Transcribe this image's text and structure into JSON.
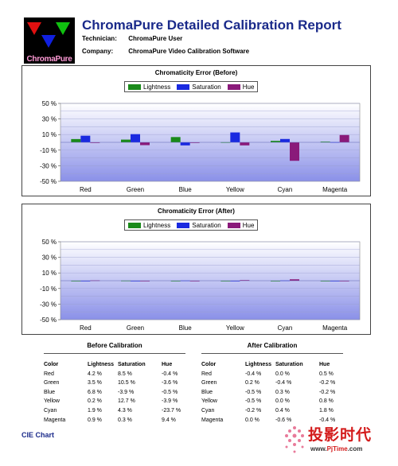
{
  "header": {
    "logo_text": "ChromaPure",
    "title": "ChromaPure Detailed Calibration Report",
    "technician_label": "Technician:",
    "technician_value": "ChromaPure User",
    "company_label": "Company:",
    "company_value": "ChromaPure Video Calibration Software"
  },
  "colors": {
    "lightness": "#1a8a1a",
    "saturation": "#1a2ae0",
    "hue": "#8a1a7a",
    "title_blue": "#1a2a8a"
  },
  "chart_data": [
    {
      "type": "bar",
      "title": "Chromaticity Error (Before)",
      "categories": [
        "Red",
        "Green",
        "Blue",
        "Yellow",
        "Cyan",
        "Magenta"
      ],
      "series": [
        {
          "name": "Lightness",
          "values": [
            4.2,
            3.5,
            6.8,
            0.2,
            1.9,
            0.9
          ]
        },
        {
          "name": "Saturation",
          "values": [
            8.5,
            10.5,
            -3.9,
            12.7,
            4.3,
            0.3
          ]
        },
        {
          "name": "Hue",
          "values": [
            -0.4,
            -3.6,
            -0.5,
            -3.9,
            -23.7,
            9.4
          ]
        }
      ],
      "ylim": [
        -50,
        50
      ],
      "yticks": [
        "50 %",
        "30 %",
        "10 %",
        "-10 %",
        "-30 %",
        "-50 %"
      ],
      "legend": "top-center",
      "grid": true
    },
    {
      "type": "bar",
      "title": "Chromaticity Error (After)",
      "categories": [
        "Red",
        "Green",
        "Blue",
        "Yellow",
        "Cyan",
        "Magenta"
      ],
      "series": [
        {
          "name": "Lightness",
          "values": [
            -0.4,
            0.2,
            -0.5,
            -0.5,
            -0.2,
            0.0
          ]
        },
        {
          "name": "Saturation",
          "values": [
            0.0,
            -0.4,
            0.3,
            0.0,
            0.4,
            -0.6
          ]
        },
        {
          "name": "Hue",
          "values": [
            0.5,
            -0.2,
            -0.2,
            0.8,
            1.8,
            -0.4
          ]
        }
      ],
      "ylim": [
        -50,
        50
      ],
      "yticks": [
        "50 %",
        "30 %",
        "10 %",
        "-10 %",
        "-30 %",
        "-50 %"
      ],
      "legend": "top-center",
      "grid": true
    }
  ],
  "tables": [
    {
      "title": "Before Calibration",
      "headers": [
        "Color",
        "Lightness",
        "Saturation",
        "Hue"
      ],
      "rows": [
        [
          "Red",
          "4.2 %",
          "8.5 %",
          "-0.4 %"
        ],
        [
          "Green",
          "3.5 %",
          "10.5 %",
          "-3.6 %"
        ],
        [
          "Blue",
          "6.8 %",
          "-3.9 %",
          "-0.5 %"
        ],
        [
          "Yellow",
          "0.2 %",
          "12.7 %",
          "-3.9 %"
        ],
        [
          "Cyan",
          "1.9 %",
          "4.3 %",
          "-23.7 %"
        ],
        [
          "Magenta",
          "0.9 %",
          "0.3 %",
          "9.4 %"
        ]
      ]
    },
    {
      "title": "After Calibration",
      "headers": [
        "Color",
        "Lightness",
        "Saturation",
        "Hue"
      ],
      "rows": [
        [
          "Red",
          "-0.4 %",
          "0.0 %",
          "0.5 %"
        ],
        [
          "Green",
          "0.2 %",
          "-0.4 %",
          "-0.2 %"
        ],
        [
          "Blue",
          "-0.5 %",
          "0.3 %",
          "-0.2 %"
        ],
        [
          "Yellow",
          "-0.5 %",
          "0.0 %",
          "0.8 %"
        ],
        [
          "Cyan",
          "-0.2 %",
          "0.4 %",
          "1.8 %"
        ],
        [
          "Magenta",
          "0.0 %",
          "-0.6 %",
          "-0.4 %"
        ]
      ]
    }
  ],
  "footer": {
    "cie_label": "CIE Chart",
    "watermark_text": "投影时代",
    "watermark_url_prefix": "www.",
    "watermark_url_brand": "PjTime",
    "watermark_url_suffix": ".com"
  }
}
